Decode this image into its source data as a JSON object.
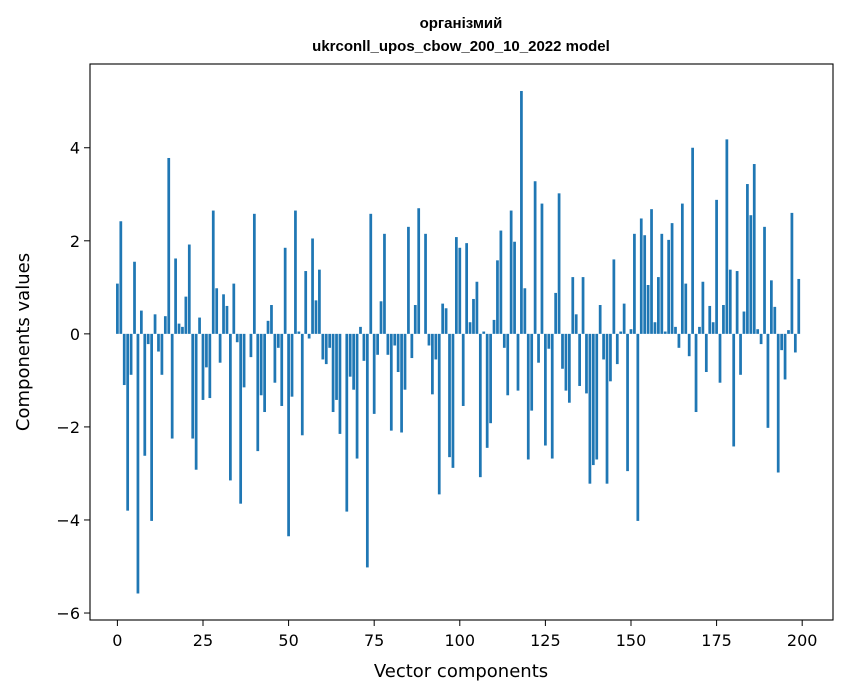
{
  "chart_data": {
    "type": "bar",
    "title": "організмий",
    "subtitle": "ukrconll_upos_cbow_200_10_2022 model",
    "xlabel": "Vector components",
    "ylabel": "Components values",
    "xlim": [
      -8,
      209
    ],
    "ylim": [
      -6.15,
      5.8
    ],
    "xticks": [
      0,
      25,
      50,
      75,
      100,
      125,
      150,
      175,
      200
    ],
    "yticks": [
      -6,
      -4,
      -2,
      0,
      2,
      4
    ],
    "ytick_labels": [
      "−6",
      "−4",
      "−2",
      "0",
      "2",
      "4"
    ],
    "bar_color": "#1f77b4",
    "grid": false,
    "values": [
      1.08,
      2.42,
      -1.1,
      -3.8,
      -0.88,
      1.55,
      -5.58,
      0.5,
      -2.62,
      -0.22,
      -4.02,
      0.42,
      -0.38,
      -0.88,
      0.38,
      3.78,
      -2.25,
      1.62,
      0.22,
      0.15,
      0.8,
      1.92,
      -2.25,
      -2.92,
      0.35,
      -1.42,
      -0.72,
      -1.38,
      2.65,
      0.98,
      -0.62,
      0.85,
      0.6,
      -3.15,
      1.08,
      -0.18,
      -3.65,
      -1.15,
      0.0,
      -0.5,
      2.58,
      -2.52,
      -1.32,
      -1.68,
      0.28,
      0.62,
      -1.05,
      -0.3,
      -1.55,
      1.85,
      -4.35,
      -1.35,
      2.65,
      0.05,
      -2.18,
      1.35,
      -0.1,
      2.05,
      0.72,
      1.38,
      -0.55,
      -0.65,
      -0.3,
      -1.68,
      -1.42,
      -2.15,
      0.0,
      -3.82,
      -0.92,
      -1.2,
      -2.68,
      0.15,
      -0.58,
      -5.02,
      2.58,
      -1.72,
      -0.45,
      0.7,
      2.15,
      -0.45,
      -2.08,
      -0.25,
      -0.82,
      -2.12,
      -1.2,
      2.3,
      -0.52,
      0.62,
      2.7,
      0.0,
      2.15,
      -0.25,
      -1.3,
      -0.55,
      -3.45,
      0.65,
      0.55,
      -2.65,
      -2.88,
      2.08,
      1.85,
      -1.55,
      1.95,
      0.25,
      0.75,
      1.12,
      -3.08,
      0.05,
      -2.45,
      -1.92,
      0.3,
      1.58,
      2.22,
      -0.3,
      -1.32,
      2.65,
      1.98,
      -1.22,
      5.22,
      0.98,
      -2.7,
      -1.65,
      3.28,
      -0.62,
      2.8,
      -2.4,
      -0.32,
      -2.68,
      0.88,
      3.02,
      -0.75,
      -1.22,
      -1.48,
      1.22,
      0.42,
      -1.12,
      1.22,
      -1.28,
      -3.22,
      -2.82,
      -2.7,
      0.62,
      -0.55,
      -3.22,
      -1.02,
      1.6,
      -0.65,
      0.05,
      0.65,
      -2.95,
      0.1,
      2.15,
      -4.02,
      2.48,
      2.12,
      1.05,
      2.68,
      0.25,
      1.22,
      2.15,
      0.05,
      2.02,
      2.38,
      0.15,
      -0.3,
      2.8,
      1.08,
      -0.48,
      4.0,
      -1.68,
      0.15,
      1.12,
      -0.82,
      0.6,
      0.25,
      2.88,
      -1.05,
      0.62,
      4.18,
      1.38,
      -2.42,
      1.35,
      -0.88,
      0.48,
      3.22,
      2.55,
      3.65,
      0.1,
      -0.22,
      2.3,
      -2.02,
      1.15,
      0.58,
      -2.98,
      -0.35,
      -0.98,
      0.08,
      2.6,
      -0.4,
      1.18
    ]
  }
}
